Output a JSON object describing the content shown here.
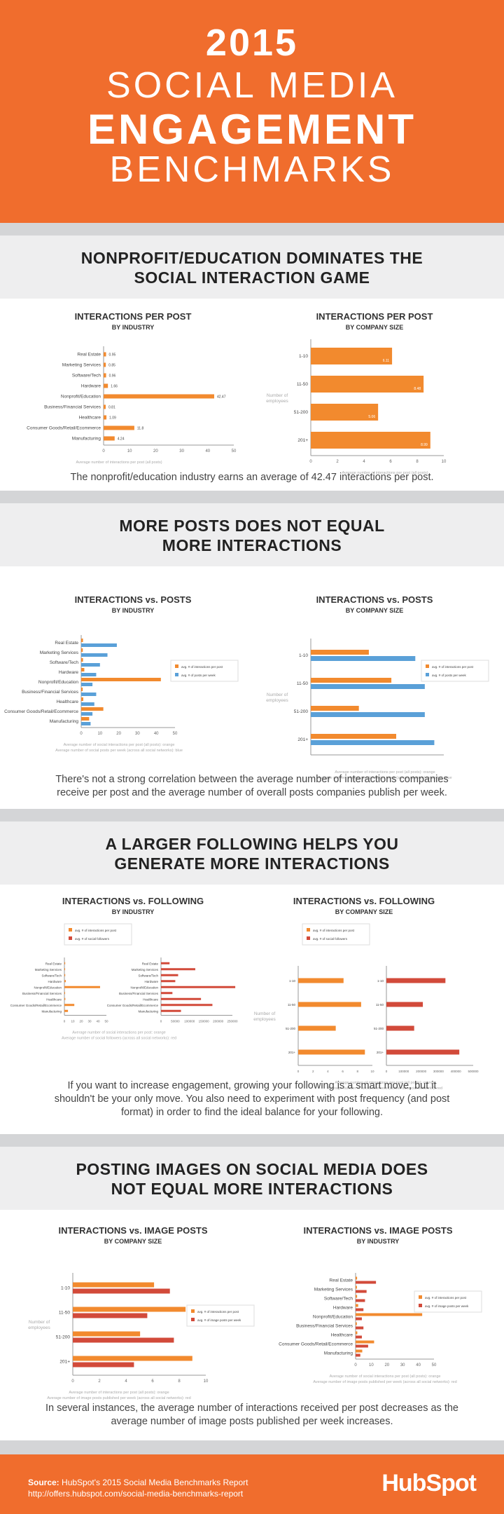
{
  "title": {
    "year": "2015",
    "line2": "SOCIAL MEDIA",
    "line3": "ENGAGEMENT",
    "line4": "BENCHMARKS"
  },
  "colors": {
    "orange": "#f28a2e",
    "blue": "#5aa0d8",
    "red": "#d24a3a",
    "hero": "#f06d2d"
  },
  "sections": [
    {
      "heading1": "NONPROFIT/EDUCATION DOMINATES THE",
      "heading2": "SOCIAL INTERACTION GAME",
      "caption1": "The nonprofit/education industry earns an average of 42.47 interactions per post.",
      "caption2": ""
    },
    {
      "heading1": "MORE POSTS DOES NOT EQUAL",
      "heading2": "MORE INTERACTIONS",
      "caption1": "There's not a strong correlation between the average number of interactions companies",
      "caption2": "receive per post and the average number of overall posts companies publish per week."
    },
    {
      "heading1": "A LARGER FOLLOWING HELPS YOU",
      "heading2": "GENERATE MORE INTERACTIONS",
      "caption1": "If you want to increase engagement, growing your following is a smart move, but it",
      "caption2": "shouldn't be your only move. You also need to experiment with post frequency (and post",
      "caption3": "format) in order to find the ideal balance for your following."
    },
    {
      "heading1": "POSTING IMAGES ON SOCIAL MEDIA DOES",
      "heading2": "NOT EQUAL MORE INTERACTIONS",
      "caption1": "In several instances, the average number of interactions received per post decreases as the",
      "caption2": "average number of image posts published per week increases."
    }
  ],
  "footer": {
    "source_label": "Source:",
    "source_text": "HubSpot's 2015 Social Media Benchmarks Report",
    "url": "http://offers.hubspot.com/social-media-benchmarks-report",
    "logo": "HubSpot"
  },
  "chart_data": [
    {
      "id": "c1",
      "type": "bar",
      "title": "INTERACTIONS PER POST",
      "subtitle": "BY INDUSTRY",
      "categories": [
        "Real Estate",
        "Marketing Services",
        "Software/Tech",
        "Hardware",
        "Nonprofit/Education",
        "Business/Financial Services",
        "Healthcare",
        "Consumer Goods/Retail/Ecommerce",
        "Manufacturing"
      ],
      "series": [
        {
          "values": [
            0.95,
            0.85,
            0.96,
            1.66,
            42.47,
            0.81,
            1.09,
            11.8,
            4.24
          ],
          "color": "orange"
        }
      ],
      "data_labels": [
        "0.95",
        "0.85",
        "0.96",
        "1.66",
        "42.47",
        "0.81",
        "1.09",
        "11.8",
        "4.24"
      ],
      "xlim": [
        0,
        50
      ],
      "xticks": [
        0,
        10,
        20,
        30,
        40,
        50
      ],
      "note1": "Average number of interactions per post (all posts)",
      "note2": ""
    },
    {
      "id": "c2",
      "type": "bar",
      "title": "INTERACTIONS PER POST",
      "subtitle": "BY COMPANY SIZE",
      "categories": [
        "1-10",
        "11-50",
        "51-200",
        "201+"
      ],
      "ylabel": "Number of employees",
      "series": [
        {
          "values": [
            6.11,
            8.48,
            5.06,
            8.99
          ],
          "color": "orange"
        }
      ],
      "data_labels": [
        "6.11",
        "8.48",
        "5.06",
        "8.99"
      ],
      "xlim": [
        0,
        10
      ],
      "xticks": [
        0,
        2,
        4,
        6,
        8,
        10
      ],
      "note1": "Average number of interactions per post (all posts)",
      "note2": ""
    },
    {
      "id": "c3",
      "type": "bar",
      "title": "INTERACTIONS vs. POSTS",
      "subtitle": "BY INDUSTRY",
      "categories": [
        "Real Estate",
        "Marketing Services",
        "Software/Tech",
        "Hardware",
        "Nonprofit/Education",
        "Business/Financial Services",
        "Healthcare",
        "Consumer Goods/Retail/Ecommerce",
        "Manufacturing"
      ],
      "series": [
        {
          "name": "avg. # of interactions per post",
          "values": [
            0.95,
            0.85,
            0.96,
            1.66,
            42.47,
            0.81,
            1.09,
            11.8,
            4.24
          ],
          "color": "orange"
        },
        {
          "name": "avg. # of posts per week",
          "values": [
            19,
            14,
            10,
            8,
            6,
            8,
            7,
            6,
            5
          ],
          "color": "blue"
        }
      ],
      "xlim": [
        0,
        50
      ],
      "xticks": [
        0,
        10,
        20,
        30,
        40,
        50
      ],
      "note1": "Average number of social interactions per post (all posts): orange",
      "note2": "Average number of social posts per week (across all social networks): blue"
    },
    {
      "id": "c4",
      "type": "bar",
      "title": "INTERACTIONS vs. POSTS",
      "subtitle": "BY COMPANY SIZE",
      "categories": [
        "1-10",
        "11-50",
        "51-200",
        "201+"
      ],
      "ylabel": "Number of employees",
      "series": [
        {
          "name": "avg. # of interactions per post",
          "values": [
            6.11,
            8.48,
            5.06,
            8.99
          ],
          "color": "orange"
        },
        {
          "name": "avg. # of posts per week",
          "values": [
            11,
            12,
            12,
            13
          ],
          "color": "blue"
        }
      ],
      "xlim": [
        0,
        14
      ],
      "xticks": [],
      "note1": "Average number of interactions per post (all posts): orange",
      "note2": "Average number of posts published per week (across all social networks): blue"
    },
    {
      "id": "c5",
      "type": "bar",
      "title": "INTERACTIONS vs. FOLLOWING",
      "subtitle": "BY INDUSTRY",
      "categories": [
        "Real Estate",
        "Marketing Services",
        "Software/Tech",
        "Hardware",
        "Nonprofit/Education",
        "Business/Financial Services",
        "Healthcare",
        "Consumer Goods/Retail/Ecommerce",
        "Manufacturing"
      ],
      "series": [
        {
          "name": "avg. # of interactions per post",
          "values": [
            0.95,
            0.85,
            0.96,
            1.66,
            42.47,
            0.81,
            1.09,
            11.8,
            4.24
          ],
          "color": "orange"
        },
        {
          "name": "avg. # of social followers",
          "values": [
            30000,
            120000,
            60000,
            50000,
            260000,
            40000,
            140000,
            180000,
            70000
          ],
          "color": "red"
        }
      ],
      "xlim": [
        0,
        50
      ],
      "xlim2": [
        0,
        250000
      ],
      "xticks": [
        0,
        10,
        20,
        30,
        40,
        50
      ],
      "xticks2": [
        0,
        50000,
        100000,
        150000,
        200000,
        250000
      ],
      "note1": "Average number of social interactions per post: orange",
      "note2": "Average number of social followers (across all social networks): red"
    },
    {
      "id": "c6",
      "type": "bar",
      "title": "INTERACTIONS vs. FOLLOWING",
      "subtitle": "BY COMPANY SIZE",
      "categories": [
        "1-10",
        "11-50",
        "51-200",
        "201+"
      ],
      "ylabel": "Number of employees",
      "series": [
        {
          "name": "avg. # of interactions per post",
          "values": [
            6.11,
            8.48,
            5.06,
            8.99
          ],
          "color": "orange"
        },
        {
          "name": "avg. # of social followers",
          "values": [
            340000,
            210000,
            160000,
            420000
          ],
          "color": "red"
        }
      ],
      "xlim": [
        0,
        10
      ],
      "xlim2": [
        0,
        500000
      ],
      "xticks": [
        0,
        2,
        4,
        6,
        8,
        10
      ],
      "xticks2": [
        0,
        100000,
        200000,
        300000,
        400000,
        500000
      ],
      "note1": "Average number of interactions per post (all posts): orange",
      "note2": "Average number of social followers (across all social networks): red"
    },
    {
      "id": "c7",
      "type": "bar",
      "title": "INTERACTIONS vs. IMAGE POSTS",
      "subtitle": "BY COMPANY SIZE",
      "categories": [
        "1-10",
        "11-50",
        "51-200",
        "201+"
      ],
      "ylabel": "Number of employees",
      "series": [
        {
          "name": "avg. # of interactions per post",
          "values": [
            6.11,
            8.48,
            5.06,
            8.99
          ],
          "color": "orange"
        },
        {
          "name": "avg. # of image posts per week",
          "values": [
            7.3,
            5.6,
            7.6,
            4.6
          ],
          "color": "red"
        }
      ],
      "xlim": [
        0,
        10
      ],
      "xticks": [
        0,
        2,
        4,
        6,
        8,
        10
      ],
      "note1": "Average number of interactions per post (all posts): orange",
      "note2": "Average number of image posts published per week (across all social networks): red"
    },
    {
      "id": "c8",
      "type": "bar",
      "title": "INTERACTIONS vs. IMAGE POSTS",
      "subtitle": "BY INDUSTRY",
      "categories": [
        "Real Estate",
        "Marketing Services",
        "Software/Tech",
        "Hardware",
        "Nonprofit/Education",
        "Business/Financial Services",
        "Healthcare",
        "Consumer Goods/Retail/Ecommerce",
        "Manufacturing"
      ],
      "series": [
        {
          "name": "avg. # of interactions per post",
          "values": [
            0.95,
            0.85,
            0.96,
            1.66,
            42.47,
            0.81,
            1.09,
            11.8,
            4.24
          ],
          "color": "orange"
        },
        {
          "name": "avg. # of image posts per week",
          "values": [
            13,
            7,
            6,
            5,
            4,
            5,
            4,
            8,
            3
          ],
          "color": "red"
        }
      ],
      "xlim": [
        0,
        50
      ],
      "xticks": [
        0,
        10,
        20,
        30,
        40,
        50
      ],
      "note1": "Average number of social interactions per post (all posts): orange",
      "note2": "Average number of image posts published per week (across all social networks): red"
    }
  ]
}
